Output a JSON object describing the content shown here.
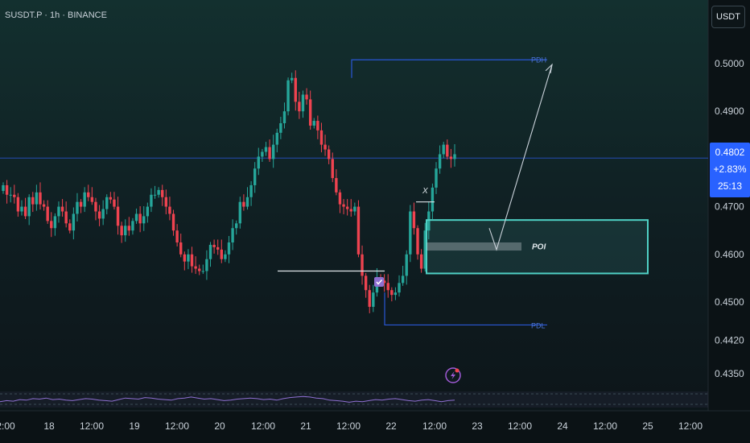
{
  "header": {
    "symbol_line": "SUSDT.P · 1h · BINANCE"
  },
  "price_scale": {
    "currency_button": "USDT",
    "labels": [
      "0.5000",
      "0.4900",
      "0.4700",
      "0.4600",
      "0.4500",
      "0.4420",
      "0.4350"
    ],
    "current_price": "0.4802",
    "change_percent": "+2.83%",
    "countdown": "25:13"
  },
  "time_axis": {
    "labels": [
      "2:00",
      "18",
      "12:00",
      "19",
      "12:00",
      "20",
      "12:00",
      "21",
      "12:00",
      "22",
      "12:00",
      "23",
      "12:00",
      "24",
      "12:00",
      "25",
      "12:00"
    ]
  },
  "annotations": {
    "pdh": "PDH",
    "pdl": "PDL",
    "poi": "POI",
    "x_mark": "X"
  },
  "colors": {
    "background": "#0f1a1e",
    "up": "#26a69a",
    "down": "#ef4350",
    "level_line": "#2a57d6",
    "zone": "#4fd1c5",
    "current_price": "#2962ff",
    "oscillator": "#8e6fd1"
  },
  "chart_data": {
    "type": "candlestick",
    "x_labels": [
      "2:00",
      "18",
      "12:00",
      "19",
      "12:00",
      "20",
      "12:00",
      "21",
      "12:00",
      "22",
      "12:00",
      "23",
      "12:00",
      "24",
      "12:00",
      "25",
      "12:00"
    ],
    "y_tick_labels": [
      "0.5000",
      "0.4900",
      "0.4700",
      "0.4600",
      "0.4500",
      "0.4420",
      "0.4350"
    ],
    "ylim": [
      0.434,
      0.5095
    ],
    "current_price": 0.4802,
    "levels": [
      {
        "label": "PDH",
        "value": 0.5008
      },
      {
        "label": "PDL",
        "value": 0.4452
      }
    ],
    "zones": [
      {
        "label": "POI",
        "top": 0.4672,
        "bottom": 0.456
      }
    ],
    "close_path": [
      0.4745,
      0.4725,
      0.4725,
      0.472,
      0.469,
      0.47,
      0.468,
      0.472,
      0.4705,
      0.473,
      0.4705,
      0.47,
      0.467,
      0.4655,
      0.468,
      0.47,
      0.469,
      0.4665,
      0.465,
      0.4685,
      0.471,
      0.47,
      0.473,
      0.472,
      0.471,
      0.469,
      0.4675,
      0.4695,
      0.472,
      0.4715,
      0.47,
      0.466,
      0.464,
      0.466,
      0.465,
      0.467,
      0.4685,
      0.4665,
      0.468,
      0.47,
      0.4725,
      0.4725,
      0.4735,
      0.472,
      0.47,
      0.4685,
      0.465,
      0.4625,
      0.46,
      0.4585,
      0.46,
      0.4575,
      0.457,
      0.4565,
      0.4565,
      0.459,
      0.462,
      0.4615,
      0.461,
      0.459,
      0.46,
      0.4625,
      0.4655,
      0.4665,
      0.471,
      0.47,
      0.472,
      0.4745,
      0.478,
      0.4805,
      0.4815,
      0.4825,
      0.48,
      0.483,
      0.4855,
      0.4875,
      0.49,
      0.4965,
      0.497,
      0.492,
      0.49,
      0.4935,
      0.4925,
      0.487,
      0.488,
      0.486,
      0.483,
      0.482,
      0.48,
      0.476,
      0.473,
      0.4705,
      0.47,
      0.4695,
      0.469,
      0.47,
      0.46,
      0.4555,
      0.4525,
      0.449,
      0.452,
      0.455,
      0.4545,
      0.454,
      0.4525,
      0.4515,
      0.452,
      0.454,
      0.4555,
      0.46,
      0.469,
      0.4655,
      0.46,
      0.457,
      0.465,
      0.469,
      0.474,
      0.478,
      0.481,
      0.483,
      0.4805,
      0.48,
      0.481
    ],
    "oscillator": [
      0.25,
      0.35,
      0.3,
      0.45,
      0.4,
      0.55,
      0.5,
      0.6,
      0.45,
      0.5,
      0.4,
      0.35,
      0.45,
      0.55,
      0.5,
      0.4,
      0.35,
      0.3,
      0.45,
      0.6,
      0.55,
      0.5,
      0.65,
      0.6,
      0.5,
      0.45,
      0.4,
      0.55,
      0.6,
      0.7,
      0.6,
      0.5,
      0.55,
      0.45,
      0.35,
      0.4,
      0.5,
      0.55,
      0.6,
      0.55,
      0.45,
      0.5,
      0.4,
      0.55,
      0.65,
      0.7,
      0.75,
      0.7,
      0.6,
      0.55,
      0.4,
      0.35,
      0.3,
      0.2,
      0.3,
      0.25,
      0.35,
      0.45,
      0.4,
      0.5,
      0.55,
      0.45,
      0.35,
      0.3,
      0.4,
      0.45,
      0.35,
      0.25,
      0.35,
      0.4
    ]
  }
}
